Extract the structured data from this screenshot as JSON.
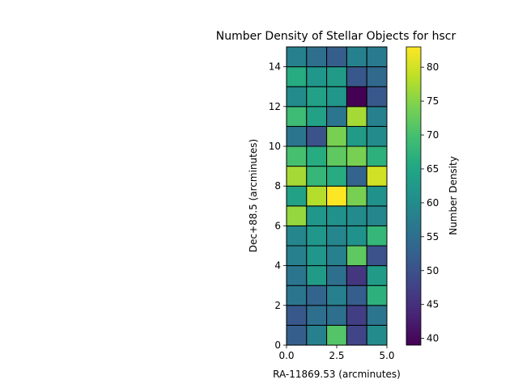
{
  "chart_data": {
    "type": "heatmap",
    "title": "Number Density of Stellar Objects for hscr",
    "xlabel": "RA-11869.53 (arcminutes)",
    "ylabel": "Dec+88.5 (arcminutes)",
    "xlim": [
      0,
      5
    ],
    "ylim": [
      0,
      15
    ],
    "x_ticks": [
      0.0,
      2.5,
      5.0
    ],
    "x_tick_labels": [
      "0.0",
      "2.5",
      "5.0"
    ],
    "y_ticks": [
      0,
      2,
      4,
      6,
      8,
      10,
      12,
      14
    ],
    "y_tick_labels": [
      "0",
      "2",
      "4",
      "6",
      "8",
      "10",
      "12",
      "14"
    ],
    "x_edges": [
      0,
      1,
      2,
      3,
      4,
      5
    ],
    "y_edges": [
      0,
      1,
      2,
      3,
      4,
      5,
      6,
      7,
      8,
      9,
      10,
      11,
      12,
      13,
      14,
      15
    ],
    "colormap": "viridis",
    "colorbar": {
      "label": "Number Density",
      "vmin": 39,
      "vmax": 83,
      "ticks": [
        40,
        45,
        50,
        55,
        60,
        65,
        70,
        75,
        80
      ],
      "tick_labels": [
        "40",
        "45",
        "50",
        "55",
        "60",
        "65",
        "70",
        "75",
        "80"
      ]
    },
    "grid": false,
    "cell_edge_color": "#000000",
    "values_rows_bottom_to_top": [
      [
        52,
        58,
        71,
        48,
        60
      ],
      [
        51,
        55,
        55,
        47,
        56
      ],
      [
        56,
        53,
        58,
        52,
        67
      ],
      [
        56,
        63,
        55,
        46,
        63
      ],
      [
        58,
        62,
        58,
        72,
        50
      ],
      [
        59,
        62,
        59,
        61,
        68
      ],
      [
        76,
        62,
        61,
        60,
        59
      ],
      [
        64,
        78,
        83,
        74,
        61
      ],
      [
        77,
        68,
        66,
        53,
        80
      ],
      [
        70,
        66,
        72,
        74,
        67
      ],
      [
        56,
        50,
        74,
        63,
        60
      ],
      [
        69,
        64,
        56,
        77,
        58
      ],
      [
        60,
        64,
        62,
        39,
        51
      ],
      [
        66,
        62,
        63,
        51,
        54
      ],
      [
        58,
        55,
        52,
        58,
        57
      ]
    ]
  }
}
